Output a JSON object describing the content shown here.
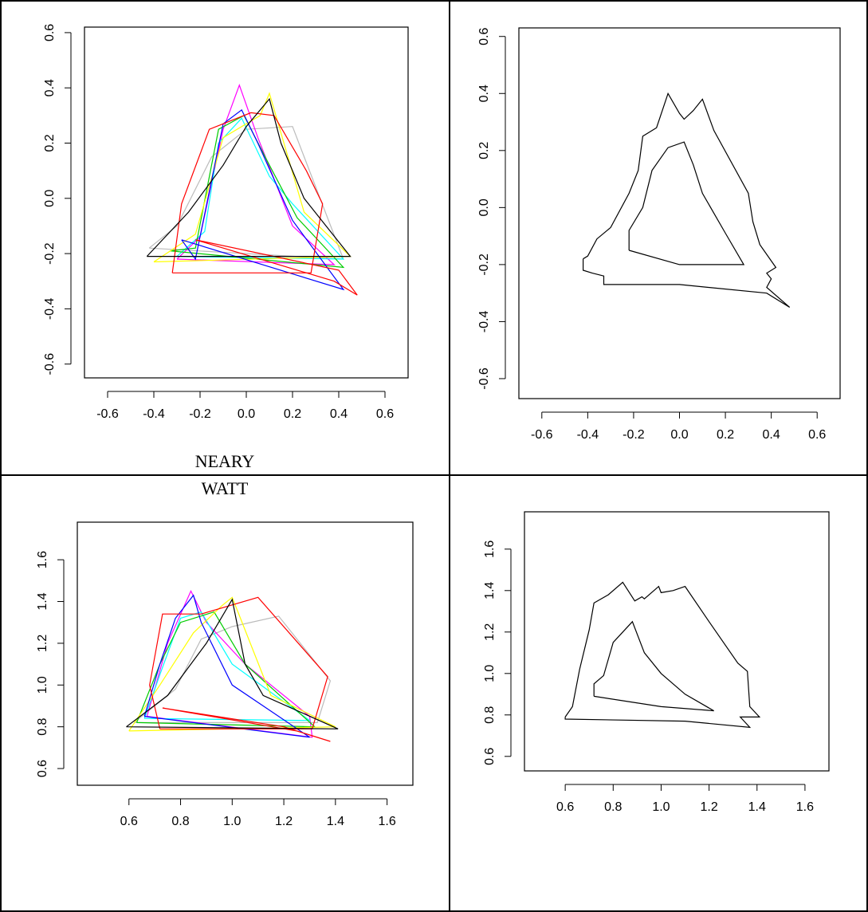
{
  "captions": {
    "line1": "NEARY",
    "line2": "WATT"
  },
  "chart_data": [
    {
      "type": "line",
      "xlim": [
        -0.7,
        0.7
      ],
      "ylim": [
        -0.65,
        0.62
      ],
      "xticks": [
        -0.6,
        -0.4,
        -0.2,
        0.0,
        0.2,
        0.4,
        0.6
      ],
      "xtick_labels": [
        "-0.6",
        "-0.4",
        "-0.2",
        "0.0",
        "0.2",
        "0.4",
        "0.6"
      ],
      "yticks": [
        -0.6,
        -0.4,
        -0.2,
        0.0,
        0.2,
        0.4,
        0.6
      ],
      "ytick_labels": [
        "-0.6",
        "-0.4",
        "-0.2",
        "0.0",
        "0.2",
        "0.4",
        "0.6"
      ],
      "series": [
        {
          "color": "#bbbbbb",
          "points": [
            [
              -0.42,
              -0.18
            ],
            [
              -0.3,
              -0.1
            ],
            [
              -0.15,
              0.15
            ],
            [
              0.0,
              0.25
            ],
            [
              0.2,
              0.26
            ],
            [
              0.42,
              -0.22
            ],
            [
              -0.42,
              -0.18
            ]
          ]
        },
        {
          "color": "#ff00ff",
          "points": [
            [
              -0.3,
              -0.22
            ],
            [
              -0.2,
              -0.14
            ],
            [
              -0.1,
              0.25
            ],
            [
              -0.03,
              0.41
            ],
            [
              0.05,
              0.22
            ],
            [
              0.2,
              -0.1
            ],
            [
              0.38,
              -0.24
            ],
            [
              -0.3,
              -0.22
            ]
          ]
        },
        {
          "color": "#00ffff",
          "points": [
            [
              -0.3,
              -0.21
            ],
            [
              -0.18,
              -0.12
            ],
            [
              -0.12,
              0.2
            ],
            [
              -0.02,
              0.29
            ],
            [
              0.1,
              0.08
            ],
            [
              0.2,
              -0.02
            ],
            [
              0.42,
              -0.22
            ],
            [
              -0.3,
              -0.21
            ]
          ]
        },
        {
          "color": "#00cc00",
          "points": [
            [
              -0.33,
              -0.19
            ],
            [
              -0.22,
              -0.18
            ],
            [
              -0.12,
              0.25
            ],
            [
              -0.01,
              0.3
            ],
            [
              0.1,
              0.12
            ],
            [
              0.22,
              -0.07
            ],
            [
              0.42,
              -0.25
            ],
            [
              -0.33,
              -0.19
            ]
          ]
        },
        {
          "color": "#ffff00",
          "points": [
            [
              -0.4,
              -0.23
            ],
            [
              -0.22,
              -0.13
            ],
            [
              -0.1,
              0.22
            ],
            [
              0.06,
              0.3
            ],
            [
              0.1,
              0.38
            ],
            [
              0.25,
              -0.05
            ],
            [
              0.45,
              -0.21
            ],
            [
              -0.4,
              -0.23
            ]
          ]
        },
        {
          "color": "#0000ff",
          "points": [
            [
              -0.28,
              -0.15
            ],
            [
              -0.22,
              -0.22
            ],
            [
              -0.1,
              0.27
            ],
            [
              -0.02,
              0.32
            ],
            [
              0.05,
              0.2
            ],
            [
              0.2,
              -0.08
            ],
            [
              0.42,
              -0.33
            ],
            [
              -0.28,
              -0.15
            ]
          ]
        },
        {
          "color": "#ff0000",
          "points": [
            [
              -0.32,
              -0.27
            ],
            [
              -0.28,
              -0.02
            ],
            [
              -0.16,
              0.25
            ],
            [
              0.02,
              0.31
            ],
            [
              0.12,
              0.3
            ],
            [
              0.26,
              0.1
            ],
            [
              0.33,
              -0.02
            ],
            [
              0.28,
              -0.27
            ],
            [
              -0.32,
              -0.27
            ]
          ]
        },
        {
          "color": "#ff0000",
          "points": [
            [
              -0.22,
              -0.15
            ],
            [
              0.38,
              -0.3
            ],
            [
              0.48,
              -0.35
            ],
            [
              0.4,
              -0.26
            ],
            [
              -0.22,
              -0.15
            ]
          ]
        },
        {
          "color": "#000000",
          "points": [
            [
              -0.43,
              -0.21
            ],
            [
              -0.25,
              -0.05
            ],
            [
              -0.1,
              0.12
            ],
            [
              0.0,
              0.26
            ],
            [
              0.1,
              0.36
            ],
            [
              0.15,
              0.2
            ],
            [
              0.25,
              0.0
            ],
            [
              0.45,
              -0.21
            ],
            [
              -0.43,
              -0.21
            ]
          ]
        }
      ]
    },
    {
      "type": "line",
      "xlim": [
        -0.7,
        0.7
      ],
      "ylim": [
        -0.67,
        0.63
      ],
      "xticks": [
        -0.6,
        -0.4,
        -0.2,
        0.0,
        0.2,
        0.4,
        0.6
      ],
      "xtick_labels": [
        "-0.6",
        "-0.4",
        "-0.2",
        "0.0",
        "0.2",
        "0.4",
        "0.6"
      ],
      "yticks": [
        -0.6,
        -0.4,
        -0.2,
        0.0,
        0.2,
        0.4,
        0.6
      ],
      "ytick_labels": [
        "-0.6",
        "-0.4",
        "-0.2",
        "0.0",
        "0.2",
        "0.4",
        "0.6"
      ],
      "series": [
        {
          "color": "#000000",
          "points": [
            [
              -0.42,
              -0.18
            ],
            [
              -0.4,
              -0.17
            ],
            [
              -0.36,
              -0.11
            ],
            [
              -0.3,
              -0.07
            ],
            [
              -0.22,
              0.05
            ],
            [
              -0.18,
              0.13
            ],
            [
              -0.16,
              0.25
            ],
            [
              -0.1,
              0.28
            ],
            [
              -0.05,
              0.4
            ],
            [
              0.0,
              0.33
            ],
            [
              0.02,
              0.31
            ],
            [
              0.06,
              0.34
            ],
            [
              0.1,
              0.38
            ],
            [
              0.15,
              0.27
            ],
            [
              0.3,
              0.05
            ],
            [
              0.32,
              -0.05
            ],
            [
              0.35,
              -0.13
            ],
            [
              0.42,
              -0.21
            ],
            [
              0.38,
              -0.23
            ],
            [
              0.4,
              -0.25
            ],
            [
              0.38,
              -0.28
            ],
            [
              0.48,
              -0.35
            ],
            [
              0.38,
              -0.3
            ],
            [
              0.0,
              -0.27
            ],
            [
              -0.33,
              -0.27
            ],
            [
              -0.33,
              -0.24
            ],
            [
              -0.38,
              -0.23
            ],
            [
              -0.42,
              -0.22
            ],
            [
              -0.42,
              -0.18
            ]
          ]
        },
        {
          "color": "#000000",
          "points": [
            [
              -0.22,
              -0.15
            ],
            [
              -0.22,
              -0.08
            ],
            [
              -0.16,
              0.0
            ],
            [
              -0.12,
              0.13
            ],
            [
              -0.05,
              0.21
            ],
            [
              0.02,
              0.23
            ],
            [
              0.06,
              0.15
            ],
            [
              0.1,
              0.05
            ],
            [
              0.2,
              -0.09
            ],
            [
              0.28,
              -0.2
            ],
            [
              0.08,
              -0.2
            ],
            [
              0.0,
              -0.2
            ],
            [
              -0.22,
              -0.15
            ]
          ]
        }
      ]
    },
    {
      "type": "line",
      "xlim": [
        0.4,
        1.7
      ],
      "ylim": [
        0.52,
        1.78
      ],
      "xticks": [
        0.6,
        0.8,
        1.0,
        1.2,
        1.4,
        1.6
      ],
      "xtick_labels": [
        "0.6",
        "0.8",
        "1.0",
        "1.2",
        "1.4",
        "1.6"
      ],
      "yticks": [
        0.6,
        0.8,
        1.0,
        1.2,
        1.4,
        1.6
      ],
      "ytick_labels": [
        "0.6",
        "0.8",
        "1.0",
        "1.2",
        "1.4",
        "1.6"
      ],
      "series": [
        {
          "color": "#bbbbbb",
          "points": [
            [
              0.62,
              0.82
            ],
            [
              0.78,
              0.98
            ],
            [
              0.88,
              1.22
            ],
            [
              1.0,
              1.28
            ],
            [
              1.18,
              1.33
            ],
            [
              1.38,
              1.02
            ],
            [
              1.33,
              0.82
            ],
            [
              0.62,
              0.82
            ]
          ]
        },
        {
          "color": "#ff00ff",
          "points": [
            [
              0.67,
              0.85
            ],
            [
              0.75,
              1.2
            ],
            [
              0.84,
              1.45
            ],
            [
              0.9,
              1.3
            ],
            [
              1.05,
              1.1
            ],
            [
              1.3,
              0.85
            ],
            [
              1.31,
              0.75
            ],
            [
              0.67,
              0.85
            ]
          ]
        },
        {
          "color": "#00ffff",
          "points": [
            [
              0.66,
              0.84
            ],
            [
              0.72,
              1.05
            ],
            [
              0.8,
              1.32
            ],
            [
              0.88,
              1.35
            ],
            [
              1.0,
              1.1
            ],
            [
              1.3,
              0.83
            ],
            [
              0.66,
              0.84
            ]
          ]
        },
        {
          "color": "#00cc00",
          "points": [
            [
              0.63,
              0.82
            ],
            [
              0.72,
              1.1
            ],
            [
              0.8,
              1.3
            ],
            [
              0.93,
              1.35
            ],
            [
              1.05,
              1.1
            ],
            [
              1.32,
              0.8
            ],
            [
              0.63,
              0.82
            ]
          ]
        },
        {
          "color": "#ffff00",
          "points": [
            [
              0.6,
              0.78
            ],
            [
              0.72,
              1.0
            ],
            [
              0.85,
              1.25
            ],
            [
              0.96,
              1.38
            ],
            [
              1.0,
              1.42
            ],
            [
              1.15,
              0.95
            ],
            [
              1.4,
              0.8
            ],
            [
              0.6,
              0.78
            ]
          ]
        },
        {
          "color": "#0000ff",
          "points": [
            [
              0.66,
              0.85
            ],
            [
              0.72,
              1.1
            ],
            [
              0.78,
              1.32
            ],
            [
              0.85,
              1.43
            ],
            [
              0.88,
              1.3
            ],
            [
              1.0,
              1.0
            ],
            [
              1.3,
              0.75
            ],
            [
              0.66,
              0.85
            ]
          ]
        },
        {
          "color": "#ff0000",
          "points": [
            [
              0.72,
              0.79
            ],
            [
              0.68,
              1.0
            ],
            [
              0.73,
              1.34
            ],
            [
              0.88,
              1.34
            ],
            [
              1.1,
              1.42
            ],
            [
              1.37,
              1.04
            ],
            [
              1.31,
              0.79
            ],
            [
              0.72,
              0.79
            ]
          ]
        },
        {
          "color": "#ff0000",
          "points": [
            [
              0.73,
              0.89
            ],
            [
              1.2,
              0.8
            ],
            [
              1.38,
              0.73
            ],
            [
              1.25,
              0.78
            ],
            [
              0.73,
              0.89
            ]
          ]
        },
        {
          "color": "#000000",
          "points": [
            [
              0.59,
              0.8
            ],
            [
              0.75,
              0.95
            ],
            [
              0.9,
              1.2
            ],
            [
              1.0,
              1.41
            ],
            [
              1.05,
              1.1
            ],
            [
              1.12,
              0.95
            ],
            [
              1.41,
              0.79
            ],
            [
              0.59,
              0.8
            ]
          ]
        }
      ]
    },
    {
      "type": "line",
      "xlim": [
        0.43,
        1.7
      ],
      "ylim": [
        0.53,
        1.78
      ],
      "xticks": [
        0.6,
        0.8,
        1.0,
        1.2,
        1.4,
        1.6
      ],
      "xtick_labels": [
        "0.6",
        "0.8",
        "1.0",
        "1.2",
        "1.4",
        "1.6"
      ],
      "yticks": [
        0.6,
        0.8,
        1.0,
        1.2,
        1.4,
        1.6
      ],
      "ytick_labels": [
        "0.6",
        "0.8",
        "1.0",
        "1.2",
        "1.4",
        "1.6"
      ],
      "series": [
        {
          "color": "#000000",
          "points": [
            [
              0.6,
              0.79
            ],
            [
              0.63,
              0.84
            ],
            [
              0.66,
              1.02
            ],
            [
              0.7,
              1.21
            ],
            [
              0.72,
              1.34
            ],
            [
              0.78,
              1.38
            ],
            [
              0.84,
              1.44
            ],
            [
              0.89,
              1.35
            ],
            [
              0.92,
              1.37
            ],
            [
              0.93,
              1.36
            ],
            [
              0.97,
              1.4
            ],
            [
              0.99,
              1.42
            ],
            [
              1.0,
              1.39
            ],
            [
              1.05,
              1.4
            ],
            [
              1.1,
              1.42
            ],
            [
              1.2,
              1.25
            ],
            [
              1.32,
              1.05
            ],
            [
              1.36,
              1.01
            ],
            [
              1.37,
              0.84
            ],
            [
              1.41,
              0.79
            ],
            [
              1.33,
              0.79
            ],
            [
              1.37,
              0.74
            ],
            [
              1.1,
              0.77
            ],
            [
              0.6,
              0.78
            ],
            [
              0.6,
              0.79
            ]
          ]
        },
        {
          "color": "#000000",
          "points": [
            [
              0.72,
              0.89
            ],
            [
              0.72,
              0.95
            ],
            [
              0.76,
              0.99
            ],
            [
              0.8,
              1.15
            ],
            [
              0.88,
              1.25
            ],
            [
              0.93,
              1.1
            ],
            [
              1.0,
              1.0
            ],
            [
              1.1,
              0.9
            ],
            [
              1.22,
              0.82
            ],
            [
              1.0,
              0.84
            ],
            [
              0.72,
              0.89
            ]
          ]
        }
      ]
    }
  ]
}
